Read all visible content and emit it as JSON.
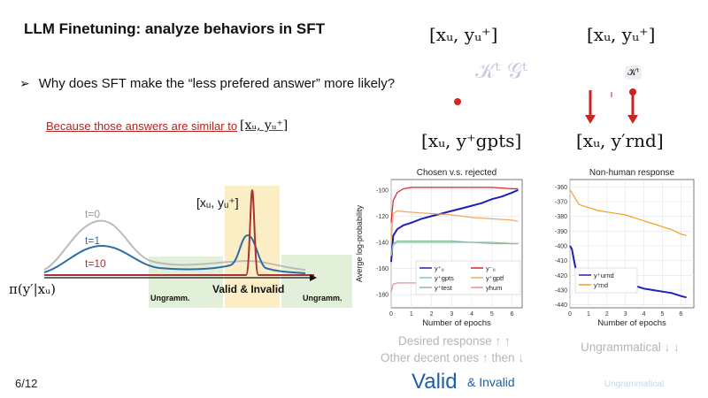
{
  "slide": {
    "title": "LLM Finetuning: analyze behaviors in SFT",
    "bullet_question": "Why does SFT make the “less prefered answer” more likely?",
    "because_text": "Because those answers are similar to",
    "because_math": "[xᵤ, yᵤ⁺]",
    "page_number": "6/12"
  },
  "top_labels": {
    "left": "[xᵤ, yᵤ⁺]",
    "right": "[xᵤ, yᵤ⁺]",
    "kt": "𝒦ᵗ  𝒢ᵗ",
    "kt_small": "𝒦ᵗ",
    "mid_left": "[xᵤ, y⁺gpts]",
    "mid_right": "[xᵤ, y′rnd]"
  },
  "left_diagram": {
    "label_t0": "t=0",
    "label_t1": "t=1",
    "label_t10": "t=10",
    "bracket_label": "[xᵤ, yᵤ⁺]",
    "pi_label": "π(y′|xᵤ)",
    "region_left": "Ungramm.",
    "region_mid": "Valid & Invalid",
    "region_right": "Ungramm."
  },
  "captions": {
    "desired": "Desired response ↑ ↑",
    "other": "Other decent ones ↑ then ↓",
    "ungrammatical": "Ungrammatical ↓ ↓",
    "valid": "Valid",
    "invalid": "& Invalid",
    "ungram_faded": "Ungrammatical"
  },
  "colors": {
    "title": "#111111",
    "because": "#b22222",
    "valid_blue": "#1e5fa8",
    "region_yellow": "#fbeec5",
    "region_green": "#e2efd9"
  },
  "chart_data": [
    {
      "type": "line",
      "title": "Chosen v.s. rejected",
      "xlabel": "Number of epochs",
      "ylabel": "Averge log-probability",
      "xlim": [
        0,
        6.5
      ],
      "ylim": [
        -190,
        -92
      ],
      "xticks": [
        0,
        1,
        2,
        3,
        4,
        5,
        6
      ],
      "yticks": [
        -100,
        -120,
        -140,
        -160,
        -180
      ],
      "legend": [
        "y⁺ᵤ",
        "y⁻ᵤ",
        "y⁺gpts",
        "y⁺gptf",
        "y⁺test",
        "yhum"
      ],
      "series": [
        {
          "name": "y⁺ᵤ",
          "color": "#1f1fb4",
          "x": [
            0,
            0.1,
            0.3,
            0.6,
            1,
            1.5,
            2,
            2.5,
            3,
            3.5,
            4,
            4.5,
            5,
            5.5,
            6,
            6.3
          ],
          "y": [
            -155,
            -135,
            -130,
            -127,
            -125,
            -122,
            -120,
            -118,
            -116,
            -114,
            -112,
            -110,
            -107,
            -105,
            -102,
            -100
          ]
        },
        {
          "name": "y⁻ᵤ",
          "color": "#d62728",
          "x": [
            0,
            0.1,
            0.3,
            0.6,
            1,
            2,
            3,
            4,
            5,
            6,
            6.3
          ],
          "y": [
            -125,
            -108,
            -102,
            -99,
            -98,
            -98,
            -98,
            -98,
            -98,
            -99,
            -99
          ]
        },
        {
          "name": "y⁺gpts",
          "color": "#7fc7c7",
          "x": [
            0,
            0.1,
            0.3,
            1,
            2,
            3,
            4,
            5,
            6,
            6.3
          ],
          "y": [
            -150,
            -142,
            -140,
            -140,
            -140,
            -140,
            -140,
            -141,
            -141,
            -141
          ]
        },
        {
          "name": "y⁺gptf",
          "color": "#f0a868",
          "x": [
            0,
            0.1,
            0.3,
            1,
            2,
            3,
            4,
            5,
            6,
            6.3
          ],
          "y": [
            -140,
            -118,
            -116,
            -117,
            -118,
            -119,
            -121,
            -122,
            -123,
            -124
          ]
        },
        {
          "name": "y⁺test",
          "color": "#8fbf8f",
          "x": [
            0,
            0.1,
            0.3,
            1,
            2,
            3,
            4,
            5,
            6,
            6.3
          ],
          "y": [
            -150,
            -141,
            -139,
            -139,
            -139,
            -139,
            -140,
            -140,
            -141,
            -141
          ]
        },
        {
          "name": "yhum",
          "color": "#e89090",
          "x": [
            0,
            0.1,
            0.3,
            1,
            2,
            3,
            4,
            5,
            6,
            6.3
          ],
          "y": [
            -178,
            -172,
            -171,
            -171,
            -171,
            -171,
            -172,
            -172,
            -173,
            -173
          ]
        }
      ]
    },
    {
      "type": "line",
      "title": "Non-human response",
      "xlabel": "Number of epochs",
      "ylabel": "",
      "xlim": [
        0,
        6.7
      ],
      "ylim": [
        -442,
        -355
      ],
      "xticks": [
        0,
        1,
        2,
        3,
        4,
        5,
        6
      ],
      "yticks": [
        -360,
        -370,
        -380,
        -390,
        -400,
        -410,
        -420,
        -430,
        -440
      ],
      "legend": [
        "y⁺urnd",
        "y′rnd"
      ],
      "series": [
        {
          "name": "y⁺urnd",
          "color": "#1f1fb4",
          "x": [
            0,
            0.1,
            0.3,
            0.5,
            1,
            1.5,
            2,
            2.5,
            3,
            3.5,
            4,
            4.5,
            5,
            5.5,
            6,
            6.3
          ],
          "y": [
            -400,
            -402,
            -415,
            -420,
            -421,
            -423,
            -425,
            -426,
            -427,
            -427,
            -429,
            -430,
            -431,
            -432,
            -434,
            -435
          ]
        },
        {
          "name": "y′rnd",
          "color": "#f0a020",
          "x": [
            0,
            0.2,
            0.5,
            1,
            1.5,
            2,
            2.5,
            3,
            3.5,
            4,
            4.5,
            5,
            5.5,
            6,
            6.3
          ],
          "y": [
            -362,
            -366,
            -372,
            -374,
            -376,
            -377,
            -378,
            -379,
            -381,
            -383,
            -385,
            -387,
            -389,
            -392,
            -393
          ]
        }
      ]
    }
  ]
}
